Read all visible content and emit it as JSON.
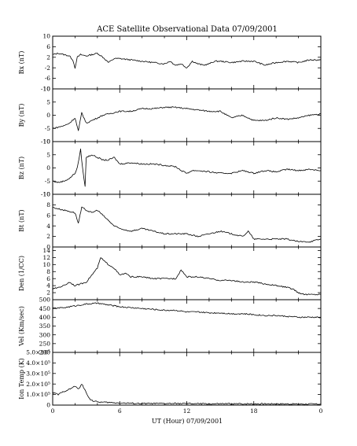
{
  "chart_data": {
    "type": "line",
    "title": "ACE Satellite Observational Data   07/09/2001",
    "xlabel": "UT (Hour)   07/09/2001",
    "x_tick_labels": [
      "0",
      "6",
      "12",
      "18",
      "0"
    ],
    "xlim": [
      0,
      24
    ],
    "line_color": "#000000",
    "panels": [
      {
        "name": "bx",
        "ylabel": "Bx (nT)",
        "ylim": [
          -10,
          10
        ],
        "yticks": [
          10,
          6,
          2,
          -2,
          -6,
          -10
        ],
        "y_tick_labels": [
          "10",
          "6",
          "2",
          "-2",
          "-6",
          "-10"
        ],
        "series": [
          {
            "x": [
              0,
              0.5,
              1,
              1.5,
              1.8,
              2,
              2.2,
              2.5,
              3,
              3.5,
              4,
              4.5,
              5,
              5.5,
              6,
              7,
              8,
              9,
              10,
              10.5,
              11,
              11.5,
              12,
              12.5,
              13,
              13.5,
              14,
              14.5,
              15,
              16,
              17,
              18,
              19,
              20,
              21,
              22,
              23,
              24
            ],
            "values": [
              3,
              3.5,
              3,
              2.5,
              1,
              -2,
              2,
              3,
              2.5,
              3,
              3.5,
              2,
              0,
              1.5,
              1.5,
              1,
              0.5,
              0,
              -0.5,
              0.5,
              -1,
              -0.5,
              -2,
              0.5,
              -0.5,
              -1,
              -0.5,
              0.5,
              0.5,
              0,
              0.5,
              0.5,
              -1,
              0,
              0.5,
              0,
              1,
              1
            ]
          }
        ]
      },
      {
        "name": "by",
        "ylabel": "By (nT)",
        "ylim": [
          -10,
          10
        ],
        "yticks": [
          10,
          5,
          0,
          -5,
          -10
        ],
        "y_tick_labels": [
          "10",
          "5",
          "0",
          "-5",
          "-10"
        ],
        "series": [
          {
            "x": [
              0,
              0.5,
              1,
              1.5,
              2,
              2.3,
              2.6,
              3,
              3.5,
              4,
              4.5,
              5,
              6,
              7,
              8,
              9,
              10,
              11,
              12,
              13,
              14,
              15,
              16,
              17,
              18,
              19,
              20,
              21,
              22,
              23,
              24
            ],
            "values": [
              -5,
              -4.5,
              -4,
              -3,
              -1,
              -6,
              1,
              -3,
              -2,
              -1,
              0,
              0.5,
              1.5,
              1.5,
              2.5,
              2.5,
              3,
              3,
              2.5,
              2,
              1.5,
              1.5,
              -1,
              0,
              -2,
              -2,
              -1,
              -1.5,
              -1,
              0,
              0.5
            ]
          }
        ]
      },
      {
        "name": "bz",
        "ylabel": "Bz (nT)",
        "ylim": [
          -10,
          10
        ],
        "yticks": [
          10,
          5,
          0,
          -5,
          -10
        ],
        "y_tick_labels": [
          "10",
          "5",
          "0",
          "-5",
          "-10"
        ],
        "series": [
          {
            "x": [
              0,
              0.5,
              1,
              1.5,
              2,
              2.2,
              2.5,
              2.7,
              2.9,
              3,
              3.5,
              4,
              4.5,
              5,
              5.5,
              6,
              7,
              8,
              9,
              10,
              11,
              11.5,
              12,
              12.5,
              13,
              14,
              15,
              16,
              17,
              18,
              19,
              20,
              21,
              22,
              23,
              24
            ],
            "values": [
              -5,
              -5.5,
              -5,
              -4,
              -2,
              0,
              7,
              -1,
              -7,
              4,
              5,
              4,
              3,
              3,
              4,
              1.5,
              2,
              1.5,
              1.5,
              1,
              0.5,
              -1,
              -2,
              -1,
              -1,
              -1.5,
              -2,
              -2,
              -1,
              -2,
              -1,
              -1.5,
              -0.5,
              -1,
              -0.5,
              -1
            ]
          }
        ]
      },
      {
        "name": "bt",
        "ylabel": "Bt (nT)",
        "ylim": [
          0,
          10
        ],
        "yticks": [
          10,
          8,
          6,
          4,
          2,
          0
        ],
        "y_tick_labels": [
          "10",
          "8",
          "6",
          "4",
          "2",
          "0"
        ],
        "series": [
          {
            "x": [
              0,
              1,
              2,
              2.3,
              2.6,
              3,
              3.5,
              4,
              4.5,
              5,
              5.5,
              6,
              7,
              8,
              9,
              10,
              11,
              12,
              13,
              14,
              15,
              16,
              17,
              17.5,
              18,
              19,
              20,
              21,
              22,
              23,
              24
            ],
            "values": [
              7.5,
              7,
              6.5,
              4.5,
              7.5,
              7,
              6.5,
              7,
              6,
              5,
              4,
              3.5,
              3,
              3.5,
              3,
              2.5,
              2.5,
              2.5,
              2,
              2.5,
              3,
              2.5,
              2,
              3,
              1.5,
              1.5,
              1.5,
              1.5,
              1,
              1,
              1.5
            ]
          }
        ]
      },
      {
        "name": "den",
        "ylabel": "Den (1/CC)",
        "ylim": [
          0,
          15
        ],
        "yticks": [
          14,
          12,
          10,
          8,
          6,
          4,
          2
        ],
        "y_tick_labels": [
          "14",
          "12",
          "10",
          "8",
          "6",
          "4",
          "2"
        ],
        "series": [
          {
            "x": [
              0,
              0.5,
              1,
              1.5,
              2,
              2.5,
              3,
              3.5,
              4,
              4.3,
              4.6,
              5,
              5.5,
              6,
              6.5,
              7,
              8,
              9,
              10,
              11,
              11.5,
              12,
              13,
              14,
              15,
              16,
              17,
              18,
              19,
              20,
              21,
              21.5,
              22,
              22.5,
              23,
              24
            ],
            "values": [
              3,
              3.5,
              4,
              5,
              4,
              4.5,
              5,
              7,
              9,
              12,
              11,
              10,
              9,
              7,
              7.5,
              6.5,
              6.5,
              6,
              6,
              6,
              8.5,
              6.5,
              6.5,
              6,
              5.5,
              5.5,
              5,
              5,
              4.5,
              4,
              3.5,
              3,
              2,
              1.5,
              1.5,
              1.5
            ]
          }
        ]
      },
      {
        "name": "vel",
        "ylabel": "Vel (Km/sec)",
        "ylim": [
          200,
          500
        ],
        "yticks": [
          500,
          450,
          400,
          350,
          300,
          250,
          200
        ],
        "y_tick_labels": [
          "500",
          "450",
          "400",
          "350",
          "300",
          "250",
          "200"
        ],
        "series": [
          {
            "x": [
              0,
              1,
              2,
              3,
              4,
              5,
              6,
              7,
              8,
              9,
              10,
              11,
              12,
              13,
              14,
              15,
              16,
              17,
              18,
              19,
              20,
              21,
              22,
              23,
              24
            ],
            "values": [
              450,
              455,
              465,
              475,
              480,
              470,
              460,
              455,
              450,
              445,
              440,
              440,
              430,
              430,
              425,
              425,
              420,
              420,
              415,
              410,
              410,
              405,
              400,
              400,
              400
            ]
          }
        ]
      },
      {
        "name": "temp",
        "ylabel": "Ion Temp (K)",
        "ylim": [
          0,
          500000
        ],
        "yticks": [
          500000,
          400000,
          300000,
          200000,
          100000,
          0
        ],
        "y_tick_labels": [
          "5.0×10⁵",
          "4.0×10⁵",
          "3.0×10⁵",
          "2.0×10⁵",
          "1.0×10⁵",
          "0"
        ],
        "series": [
          {
            "x": [
              0,
              0.5,
              1,
              1.5,
              2,
              2.3,
              2.6,
              3,
              3.3,
              3.6,
              4,
              5,
              6,
              8,
              10,
              12,
              14,
              16,
              18,
              20,
              22,
              24
            ],
            "values": [
              120000,
              100000,
              130000,
              150000,
              180000,
              150000,
              200000,
              120000,
              60000,
              40000,
              30000,
              25000,
              20000,
              15000,
              15000,
              15000,
              12000,
              12000,
              12000,
              12000,
              10000,
              10000
            ]
          }
        ]
      }
    ]
  }
}
